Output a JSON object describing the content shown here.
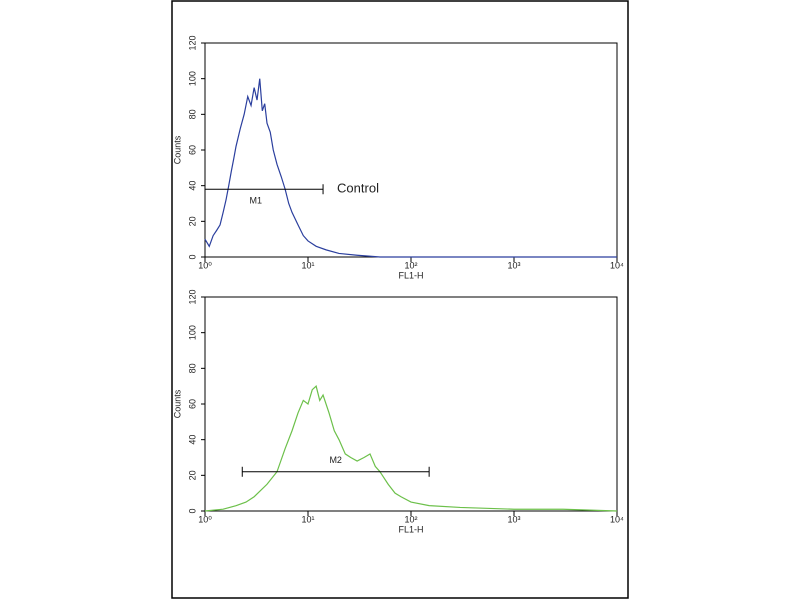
{
  "chart_data": [
    {
      "type": "line",
      "xscale": "log",
      "xlabel": "FL1-H",
      "ylabel": "Counts",
      "xlim": [
        1,
        10000
      ],
      "ylim": [
        0,
        120
      ],
      "xticks": [
        {
          "value": 1,
          "label": "10⁰"
        },
        {
          "value": 10,
          "label": "10¹"
        },
        {
          "value": 100,
          "label": "10²"
        },
        {
          "value": 1000,
          "label": "10³"
        },
        {
          "value": 10000,
          "label": "10⁴"
        }
      ],
      "yticks": [
        0,
        20,
        40,
        60,
        80,
        100,
        120
      ],
      "series": [
        {
          "color": "#2b3f9e",
          "x": [
            1,
            1.1,
            1.2,
            1.3,
            1.4,
            1.5,
            1.6,
            1.7,
            1.8,
            1.9,
            2,
            2.2,
            2.4,
            2.6,
            2.8,
            3,
            3.2,
            3.4,
            3.6,
            3.8,
            4,
            4.3,
            4.6,
            5,
            5.5,
            6,
            6.5,
            7,
            8,
            9,
            10,
            12,
            15,
            20,
            30,
            50,
            100,
            1000,
            10000
          ],
          "values": [
            10,
            6,
            12,
            15,
            18,
            25,
            32,
            40,
            48,
            55,
            62,
            72,
            80,
            90,
            85,
            95,
            88,
            100,
            82,
            86,
            75,
            70,
            60,
            52,
            45,
            38,
            30,
            25,
            18,
            12,
            9,
            6,
            4,
            2,
            1,
            0,
            0,
            0,
            0
          ]
        }
      ],
      "gate": {
        "label": "M1",
        "range": [
          1,
          14
        ],
        "y": 38
      },
      "annotation": "Control"
    },
    {
      "type": "line",
      "xscale": "log",
      "xlabel": "FL1-H",
      "ylabel": "Counts",
      "xlim": [
        1,
        10000
      ],
      "ylim": [
        0,
        120
      ],
      "xticks": [
        {
          "value": 1,
          "label": "10⁰"
        },
        {
          "value": 10,
          "label": "10¹"
        },
        {
          "value": 100,
          "label": "10²"
        },
        {
          "value": 1000,
          "label": "10³"
        },
        {
          "value": 10000,
          "label": "10⁴"
        }
      ],
      "yticks": [
        0,
        20,
        40,
        60,
        80,
        100,
        120
      ],
      "series": [
        {
          "color": "#6cc04a",
          "x": [
            1,
            1.5,
            2,
            2.5,
            3,
            4,
            5,
            6,
            7,
            8,
            9,
            10,
            11,
            12,
            13,
            14,
            16,
            18,
            20,
            23,
            26,
            30,
            35,
            40,
            45,
            50,
            60,
            70,
            80,
            100,
            150,
            300,
            1000,
            3000,
            10000
          ],
          "values": [
            0,
            1,
            3,
            5,
            8,
            15,
            22,
            35,
            45,
            55,
            62,
            60,
            68,
            70,
            62,
            65,
            55,
            45,
            40,
            32,
            30,
            28,
            30,
            32,
            25,
            22,
            15,
            10,
            8,
            5,
            3,
            2,
            1,
            1,
            0
          ]
        }
      ],
      "gate": {
        "label": "M2",
        "range": [
          2.3,
          150
        ],
        "y": 22
      }
    }
  ]
}
